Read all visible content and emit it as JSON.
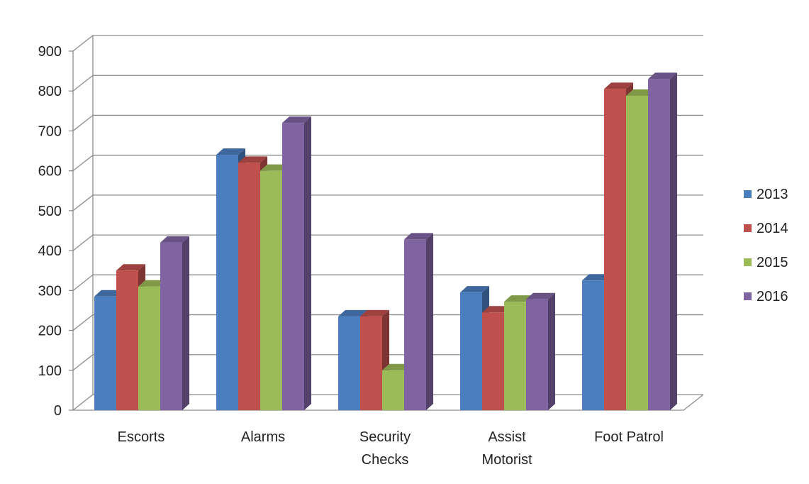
{
  "chart_data": {
    "type": "bar",
    "title": "",
    "xlabel": "",
    "ylabel": "",
    "categories": [
      [
        "Escorts"
      ],
      [
        "Alarms"
      ],
      [
        "Security",
        "Checks"
      ],
      [
        "Assist",
        "Motorist"
      ],
      [
        "Foot Patrol"
      ]
    ],
    "series": [
      {
        "name": "2013",
        "values": [
          285,
          640,
          235,
          295,
          325
        ]
      },
      {
        "name": "2014",
        "values": [
          350,
          620,
          235,
          245,
          805
        ]
      },
      {
        "name": "2015",
        "values": [
          310,
          600,
          100,
          272,
          788
        ]
      },
      {
        "name": "2016",
        "values": [
          420,
          720,
          428,
          278,
          830
        ]
      }
    ],
    "ylim": [
      0,
      900
    ],
    "yticks": [
      "0",
      "100",
      "200",
      "300",
      "400",
      "500",
      "600",
      "700",
      "800",
      "900"
    ],
    "grid": true,
    "legend_position": "right",
    "colors": [
      "#4a7ebf",
      "#c0504d",
      "#9bbb59",
      "#8064a2"
    ]
  }
}
